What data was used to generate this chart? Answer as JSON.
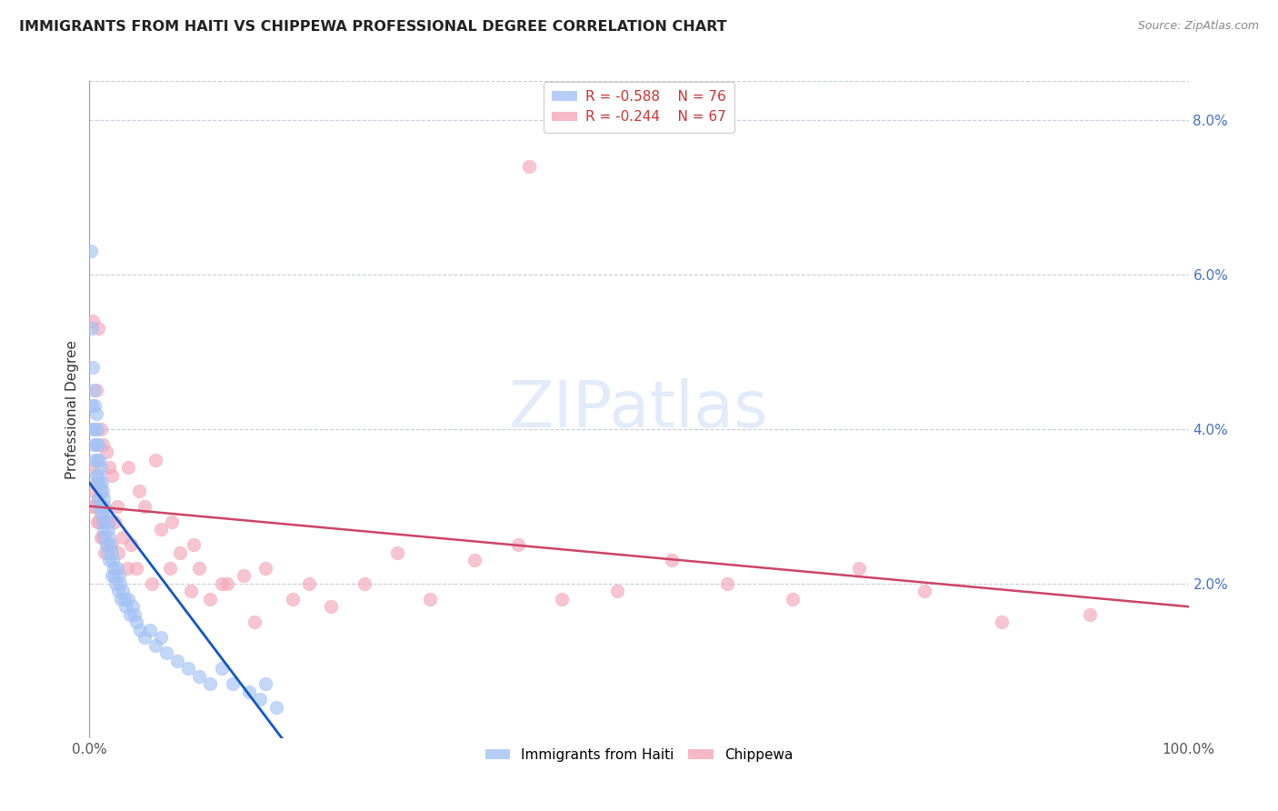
{
  "title": "IMMIGRANTS FROM HAITI VS CHIPPEWA PROFESSIONAL DEGREE CORRELATION CHART",
  "source": "Source: ZipAtlas.com",
  "ylabel": "Professional Degree",
  "xmin": 0.0,
  "xmax": 1.0,
  "ymin": 0.0,
  "ymax": 0.085,
  "legend_haiti_R": "R = -0.588",
  "legend_haiti_N": "N = 76",
  "legend_chippewa_R": "R = -0.244",
  "legend_chippewa_N": "N = 67",
  "haiti_color": "#a4c2f4",
  "chippewa_color": "#f4a7b9",
  "haiti_line_color": "#1155cc",
  "chippewa_line_color": "#cc4466",
  "background_color": "#ffffff",
  "grid_color": "#b0b8c8",
  "haiti_x": [
    0.001,
    0.002,
    0.002,
    0.003,
    0.003,
    0.004,
    0.004,
    0.005,
    0.005,
    0.005,
    0.006,
    0.006,
    0.006,
    0.007,
    0.007,
    0.007,
    0.008,
    0.008,
    0.008,
    0.009,
    0.009,
    0.009,
    0.01,
    0.01,
    0.01,
    0.011,
    0.011,
    0.012,
    0.012,
    0.013,
    0.013,
    0.014,
    0.014,
    0.015,
    0.015,
    0.016,
    0.016,
    0.017,
    0.018,
    0.018,
    0.019,
    0.02,
    0.02,
    0.021,
    0.022,
    0.023,
    0.024,
    0.025,
    0.026,
    0.027,
    0.028,
    0.029,
    0.03,
    0.032,
    0.033,
    0.035,
    0.037,
    0.039,
    0.041,
    0.043,
    0.046,
    0.05,
    0.055,
    0.06,
    0.065,
    0.07,
    0.08,
    0.09,
    0.1,
    0.11,
    0.12,
    0.13,
    0.145,
    0.155,
    0.16,
    0.17
  ],
  "haiti_y": [
    0.063,
    0.053,
    0.043,
    0.048,
    0.04,
    0.045,
    0.038,
    0.043,
    0.04,
    0.036,
    0.042,
    0.038,
    0.034,
    0.04,
    0.036,
    0.033,
    0.038,
    0.034,
    0.031,
    0.036,
    0.033,
    0.03,
    0.035,
    0.032,
    0.029,
    0.033,
    0.03,
    0.032,
    0.028,
    0.031,
    0.027,
    0.03,
    0.026,
    0.029,
    0.025,
    0.028,
    0.024,
    0.027,
    0.026,
    0.023,
    0.025,
    0.024,
    0.021,
    0.023,
    0.022,
    0.021,
    0.02,
    0.022,
    0.019,
    0.021,
    0.02,
    0.018,
    0.019,
    0.018,
    0.017,
    0.018,
    0.016,
    0.017,
    0.016,
    0.015,
    0.014,
    0.013,
    0.014,
    0.012,
    0.013,
    0.011,
    0.01,
    0.009,
    0.008,
    0.007,
    0.009,
    0.007,
    0.006,
    0.005,
    0.007,
    0.004
  ],
  "chippewa_x": [
    0.002,
    0.003,
    0.004,
    0.005,
    0.006,
    0.007,
    0.008,
    0.009,
    0.01,
    0.011,
    0.012,
    0.013,
    0.014,
    0.016,
    0.018,
    0.02,
    0.023,
    0.026,
    0.03,
    0.034,
    0.038,
    0.043,
    0.05,
    0.057,
    0.065,
    0.073,
    0.082,
    0.092,
    0.1,
    0.11,
    0.125,
    0.14,
    0.16,
    0.185,
    0.2,
    0.22,
    0.25,
    0.28,
    0.31,
    0.35,
    0.39,
    0.43,
    0.48,
    0.53,
    0.58,
    0.64,
    0.7,
    0.76,
    0.83,
    0.91,
    0.003,
    0.006,
    0.01,
    0.015,
    0.02,
    0.025,
    0.008,
    0.012,
    0.018,
    0.035,
    0.045,
    0.06,
    0.075,
    0.095,
    0.12,
    0.15,
    0.4
  ],
  "chippewa_y": [
    0.03,
    0.035,
    0.032,
    0.03,
    0.033,
    0.028,
    0.031,
    0.028,
    0.026,
    0.029,
    0.026,
    0.028,
    0.024,
    0.025,
    0.028,
    0.025,
    0.028,
    0.024,
    0.026,
    0.022,
    0.025,
    0.022,
    0.03,
    0.02,
    0.027,
    0.022,
    0.024,
    0.019,
    0.022,
    0.018,
    0.02,
    0.021,
    0.022,
    0.018,
    0.02,
    0.017,
    0.02,
    0.024,
    0.018,
    0.023,
    0.025,
    0.018,
    0.019,
    0.023,
    0.02,
    0.018,
    0.022,
    0.019,
    0.015,
    0.016,
    0.054,
    0.045,
    0.04,
    0.037,
    0.034,
    0.03,
    0.053,
    0.038,
    0.035,
    0.035,
    0.032,
    0.036,
    0.028,
    0.025,
    0.02,
    0.015,
    0.074
  ],
  "haiti_trendline_x": [
    0.0,
    0.175
  ],
  "haiti_trendline_y": [
    0.033,
    0.0
  ],
  "chippewa_trendline_x": [
    0.0,
    1.0
  ],
  "chippewa_trendline_y": [
    0.03,
    0.017
  ]
}
